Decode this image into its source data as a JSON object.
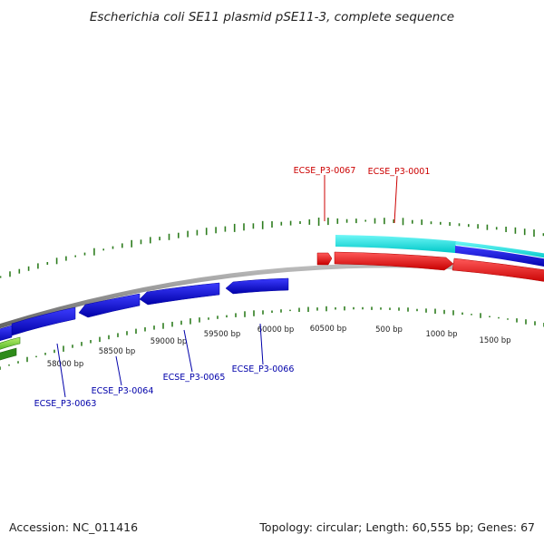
{
  "title": "Escherichia coli SE11 plasmid pSE11-3, complete sequence",
  "footer": {
    "accession": "Accession: NC_011416",
    "summary": "Topology: circular; Length: 60,555 bp; Genes: 67"
  },
  "plasmid": {
    "length": 60555
  },
  "ticks": [
    {
      "label": "58000 bp",
      "bp": 58000
    },
    {
      "label": "58500 bp",
      "bp": 58500
    },
    {
      "label": "59000 bp",
      "bp": 59000
    },
    {
      "label": "59500 bp",
      "bp": 59500
    },
    {
      "label": "60000 bp",
      "bp": 60000
    },
    {
      "label": "60500 bp",
      "bp": 60500
    },
    {
      "label": "500 bp",
      "bp": 500
    },
    {
      "label": "1000 bp",
      "bp": 1000
    },
    {
      "label": "1500 bp",
      "bp": 1500
    }
  ],
  "gene_labels": [
    {
      "name": "ECSE_P3-0067",
      "strand": "forward",
      "color": "#cc0000"
    },
    {
      "name": "ECSE_P3-0001",
      "strand": "forward",
      "color": "#cc0000"
    },
    {
      "name": "ECSE_P3-0063",
      "strand": "reverse",
      "color": "#0000aa"
    },
    {
      "name": "ECSE_P3-0064",
      "strand": "reverse",
      "color": "#0000aa"
    },
    {
      "name": "ECSE_P3-0065",
      "strand": "reverse",
      "color": "#0000aa"
    },
    {
      "name": "ECSE_P3-0066",
      "strand": "reverse",
      "color": "#0000aa"
    }
  ],
  "colors": {
    "forward_gene": "#ff0000",
    "reverse_gene": "#0000ee",
    "cog_cyan": "#00eeee",
    "cog_blue": "#0000cc",
    "green_feature": "#55cc22",
    "backbone": "#888888",
    "tick_green": "#2e7d1f"
  }
}
